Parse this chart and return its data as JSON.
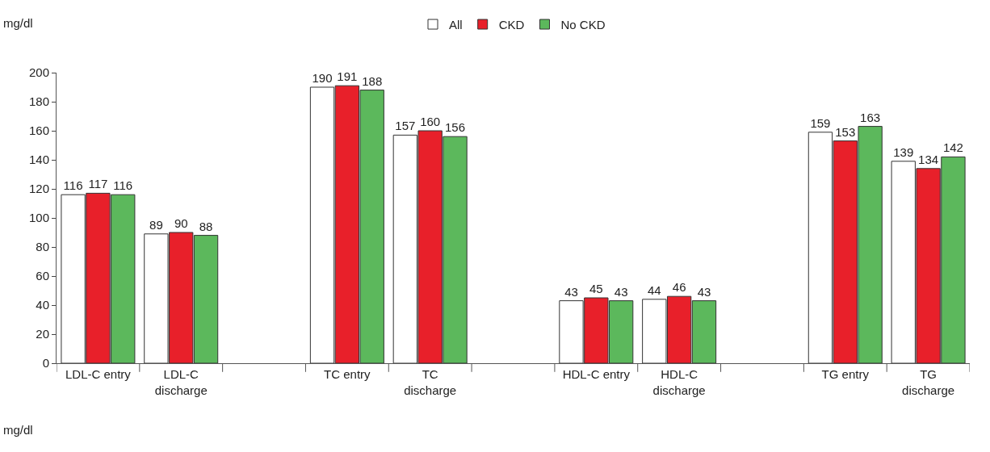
{
  "chart_data": {
    "type": "bar",
    "ylabel": "mg/dl",
    "annotations": [
      "mg/dl"
    ],
    "categories": [
      "LDL-C entry",
      "LDL-C\ndischarge",
      null,
      "TC entry",
      "TC\ndischarge",
      null,
      "HDL-C entry",
      "HDL-C\ndischarge",
      null,
      "TG entry",
      "TG\ndischarge"
    ],
    "series": [
      {
        "name": "All",
        "color": "#ffffff",
        "values": [
          116,
          89,
          null,
          190,
          157,
          null,
          43,
          44,
          null,
          159,
          139
        ]
      },
      {
        "name": "CKD",
        "color": "#e8202a",
        "values": [
          117,
          90,
          null,
          191,
          160,
          null,
          45,
          46,
          null,
          153,
          134
        ]
      },
      {
        "name": "No CKD",
        "color": "#5cb85c",
        "values": [
          116,
          88,
          null,
          188,
          156,
          null,
          43,
          43,
          null,
          163,
          142
        ]
      }
    ],
    "ylim": [
      0,
      200
    ],
    "yticks": [
      0,
      20,
      40,
      60,
      80,
      100,
      120,
      140,
      160,
      180,
      200
    ],
    "data_labels": true,
    "legend": "top"
  }
}
